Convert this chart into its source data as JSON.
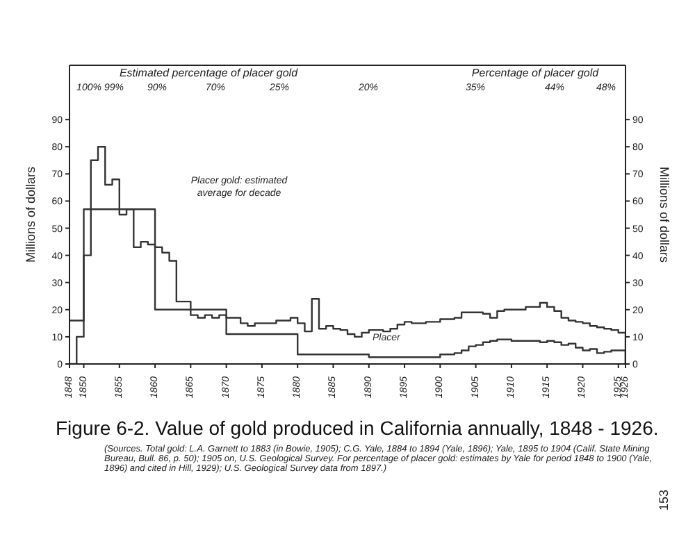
{
  "chart_data": {
    "type": "step",
    "title": "Figure 6-2. Value of gold produced in California annually, 1848 - 1926.",
    "ylabel": "Millions of dollars",
    "y2label": "Millions of dollars",
    "xlim": [
      1848,
      1926
    ],
    "xticks": [
      1848,
      1850,
      1855,
      1860,
      1865,
      1870,
      1875,
      1880,
      1885,
      1890,
      1895,
      1900,
      1905,
      1910,
      1915,
      1920,
      1925,
      1926
    ],
    "ylim": [
      0,
      110
    ],
    "yticks": [
      0,
      10,
      20,
      30,
      40,
      50,
      60,
      70,
      80,
      90
    ],
    "y2lim": [
      0,
      110
    ],
    "y2ticks": [
      0,
      10,
      20,
      30,
      40,
      50,
      60,
      70,
      80,
      90
    ],
    "grid": false,
    "legend": false,
    "marker": "none",
    "line_style": "solid",
    "series": [
      {
        "color": "#333333",
        "x": [
          1848,
          1849,
          1850,
          1851,
          1852,
          1853,
          1854,
          1855,
          1856,
          1857,
          1858,
          1859,
          1860,
          1861,
          1862,
          1863,
          1864,
          1865,
          1866,
          1867,
          1868,
          1869,
          1870,
          1871,
          1872,
          1873,
          1874,
          1875,
          1876,
          1877,
          1878,
          1879,
          1880,
          1881,
          1882,
          1883,
          1884,
          1885,
          1886,
          1887,
          1888,
          1889,
          1890,
          1891,
          1892,
          1893,
          1894,
          1895,
          1896,
          1897,
          1898,
          1899,
          1900,
          1901,
          1902,
          1903,
          1904,
          1905,
          1906,
          1907,
          1908,
          1909,
          1910,
          1911,
          1912,
          1913,
          1914,
          1915,
          1916,
          1917,
          1918,
          1919,
          1920,
          1921,
          1922,
          1923,
          1924,
          1925,
          1926
        ],
        "values": [
          0,
          10,
          40,
          75,
          80,
          66,
          68,
          55,
          57,
          43,
          45,
          44,
          43,
          41,
          38,
          23,
          23,
          18,
          17,
          18,
          17,
          18,
          17,
          17,
          15,
          14,
          15,
          15,
          15,
          16,
          16,
          17,
          15,
          12,
          24,
          13,
          14,
          13,
          12.5,
          11,
          10,
          11.5,
          12.5,
          12.5,
          12,
          13,
          14.5,
          15.5,
          15,
          15,
          15.5,
          15.5,
          16.5,
          16.5,
          17,
          19,
          19,
          19,
          18.5,
          17,
          19.5,
          20,
          20,
          20,
          21,
          21,
          22.5,
          21,
          19.5,
          17,
          16,
          15.5,
          15,
          14,
          13.5,
          13,
          12.5,
          11.5,
          0
        ]
      },
      {
        "name": "Placer",
        "color": "#333333",
        "x": [
          1848,
          1850,
          1860,
          1870,
          1880,
          1890,
          1900,
          1901,
          1902,
          1903,
          1904,
          1905,
          1906,
          1907,
          1908,
          1909,
          1910,
          1911,
          1912,
          1913,
          1914,
          1915,
          1916,
          1917,
          1918,
          1919,
          1920,
          1921,
          1922,
          1923,
          1924,
          1925,
          1926
        ],
        "values": [
          16,
          57,
          20,
          11,
          3.5,
          2.5,
          3.5,
          3.5,
          4,
          5,
          6.5,
          7,
          8,
          8.5,
          9,
          9,
          8.5,
          8.5,
          8.5,
          8.5,
          8,
          8.5,
          8,
          7,
          7.5,
          6,
          5,
          5.5,
          4,
          4.5,
          5,
          5,
          0
        ]
      }
    ],
    "annotations": [
      "Estimated percentage of placer gold",
      "Percentage of placer gold",
      "100%",
      "99%",
      "90%",
      "70%",
      "25%",
      "20%",
      "35%",
      "44%",
      "48%",
      "Placer gold: estimated average for decade",
      "(Sources. Total gold: L.A. Garnett to 1883 (in Bowie, 1905); C.G. Yale, 1884 to 1894 (Yale, 1896); Yale, 1895 to 1904 (Calif. State Mining Bureau, Bull. 86, p. 50); 1905 on, U.S. Geological Survey. For percentage of placer gold: estimates by Yale for period 1848 to 1900 (Yale, 1896) and cited in Hill, 1929); U.S. Geological Survey data from 1897.)",
      "153"
    ]
  }
}
